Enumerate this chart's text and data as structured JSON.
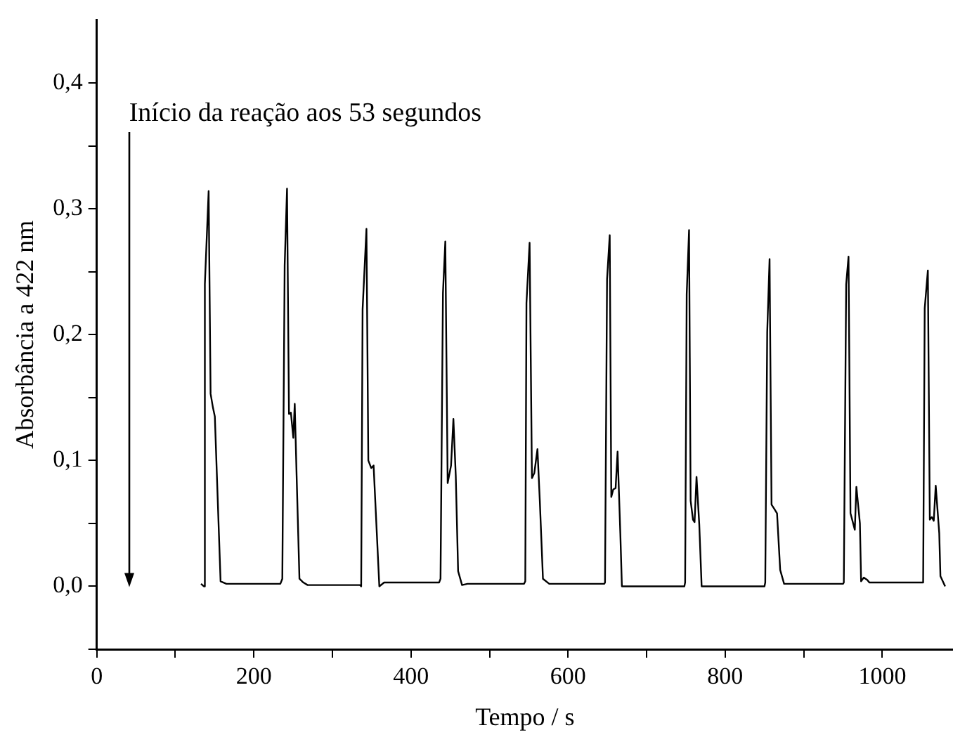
{
  "chart_data": {
    "type": "line",
    "xlabel": "Tempo / s",
    "ylabel": "Absorbância a 422 nm",
    "x": [
      132.7,
      136.3,
      137.6,
      142.4,
      144.9,
      147.9,
      150.3,
      157.6,
      165,
      233.7,
      236.2,
      239.2,
      242.2,
      244.7,
      247.1,
      250.2,
      252,
      254.4,
      258,
      263,
      268.4,
      335,
      336.6,
      338.4,
      343.3,
      345.7,
      349.4,
      352.4,
      359.7,
      365.8,
      435.8,
      437.6,
      440.7,
      443.7,
      446.7,
      451,
      454,
      457,
      460,
      465,
      472,
      544,
      545.5,
      547,
      551,
      554,
      557,
      561,
      564,
      568,
      576,
      646,
      647,
      649.6,
      653,
      655,
      657.5,
      660.5,
      663,
      666.5,
      668.5,
      748,
      749,
      751,
      754,
      756,
      759,
      761,
      763.5,
      767,
      770,
      850,
      851,
      853.5,
      856.5,
      859,
      863,
      866,
      870,
      875,
      950,
      951,
      954,
      957,
      959.5,
      965,
      967,
      971.5,
      973,
      976.5,
      981,
      983.5,
      1050,
      1052,
      1054,
      1058,
      1060.5,
      1063,
      1065.5,
      1068,
      1072.5,
      1074,
      1080
    ],
    "series": [
      {
        "color": "#000000",
        "values": [
          0.002,
          0,
          0.24,
          0.314,
          0.153,
          0.142,
          0.135,
          0.004,
          0.002,
          0.002,
          0.006,
          0.255,
          0.316,
          0.137,
          0.138,
          0.118,
          0.145,
          0.088,
          0.006,
          0.003,
          0.001,
          0.001,
          0,
          0.22,
          0.284,
          0.1,
          0.094,
          0.096,
          0,
          0.003,
          0.003,
          0.006,
          0.233,
          0.274,
          0.082,
          0.096,
          0.133,
          0.088,
          0.012,
          0.001,
          0.002,
          0.002,
          0.004,
          0.225,
          0.273,
          0.086,
          0.09,
          0.109,
          0.068,
          0.006,
          0.002,
          0.002,
          0.003,
          0.244,
          0.279,
          0.071,
          0.077,
          0.078,
          0.107,
          0.042,
          0,
          0,
          0.003,
          0.232,
          0.283,
          0.068,
          0.053,
          0.051,
          0.087,
          0.049,
          0,
          0,
          0.003,
          0.202,
          0.26,
          0.065,
          0.061,
          0.058,
          0.013,
          0.002,
          0.002,
          0.003,
          0.24,
          0.262,
          0.058,
          0.045,
          0.079,
          0.05,
          0.004,
          0.007,
          0.005,
          0.003,
          0.003,
          0.003,
          0.221,
          0.251,
          0.053,
          0.055,
          0.052,
          0.08,
          0.042,
          0.008,
          0
        ]
      }
    ],
    "xlim": [
      0,
      1090
    ],
    "xticks": [
      0,
      {
        "value": 100,
        "label": null
      },
      200,
      {
        "value": 300,
        "label": null
      },
      400,
      {
        "value": 500,
        "label": null
      },
      600,
      {
        "value": 700,
        "label": null
      },
      800,
      {
        "value": 900,
        "label": null
      },
      1000
    ],
    "ylim": [
      -0.05,
      0.45
    ],
    "yticks": [
      {
        "value": -0.05,
        "label": null
      },
      {
        "value": 0,
        "label": "0,0"
      },
      {
        "value": 0.05,
        "label": null
      },
      {
        "value": 0.1,
        "label": "0,1"
      },
      {
        "value": 0.15,
        "label": null
      },
      {
        "value": 0.2,
        "label": "0,2"
      },
      {
        "value": 0.25,
        "label": null
      },
      {
        "value": 0.3,
        "label": "0,3"
      },
      {
        "value": 0.35,
        "label": null
      },
      {
        "value": 0.4,
        "label": "0,4"
      }
    ],
    "grid": false,
    "legend": false,
    "marker": "none",
    "line_style": "solid",
    "annotations": [
      "Início da reação aos 53 segundos"
    ]
  }
}
